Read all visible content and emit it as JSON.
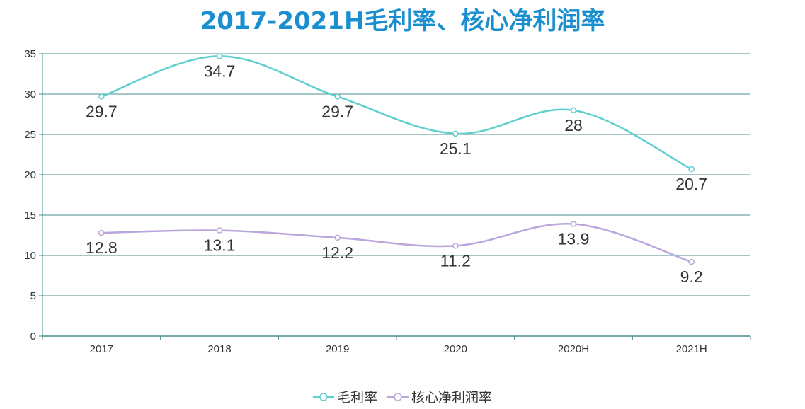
{
  "chart_data": {
    "type": "line",
    "title": "2017-2021H毛利率、核心净利润率",
    "categories": [
      "2017",
      "2018",
      "2019",
      "2020",
      "2020H",
      "2021H"
    ],
    "ylim": [
      0,
      35
    ],
    "yticks": [
      0,
      5,
      10,
      15,
      20,
      25,
      30,
      35
    ],
    "grid": true,
    "legend_position": "bottom-center",
    "series": [
      {
        "name": "毛利率",
        "color": "#5ecfcf",
        "values": [
          29.7,
          34.7,
          29.7,
          25.1,
          28,
          20.7
        ]
      },
      {
        "name": "核心净利润率",
        "color": "#b9a6dc",
        "values": [
          12.8,
          13.1,
          12.2,
          11.2,
          13.9,
          9.2
        ]
      }
    ]
  }
}
